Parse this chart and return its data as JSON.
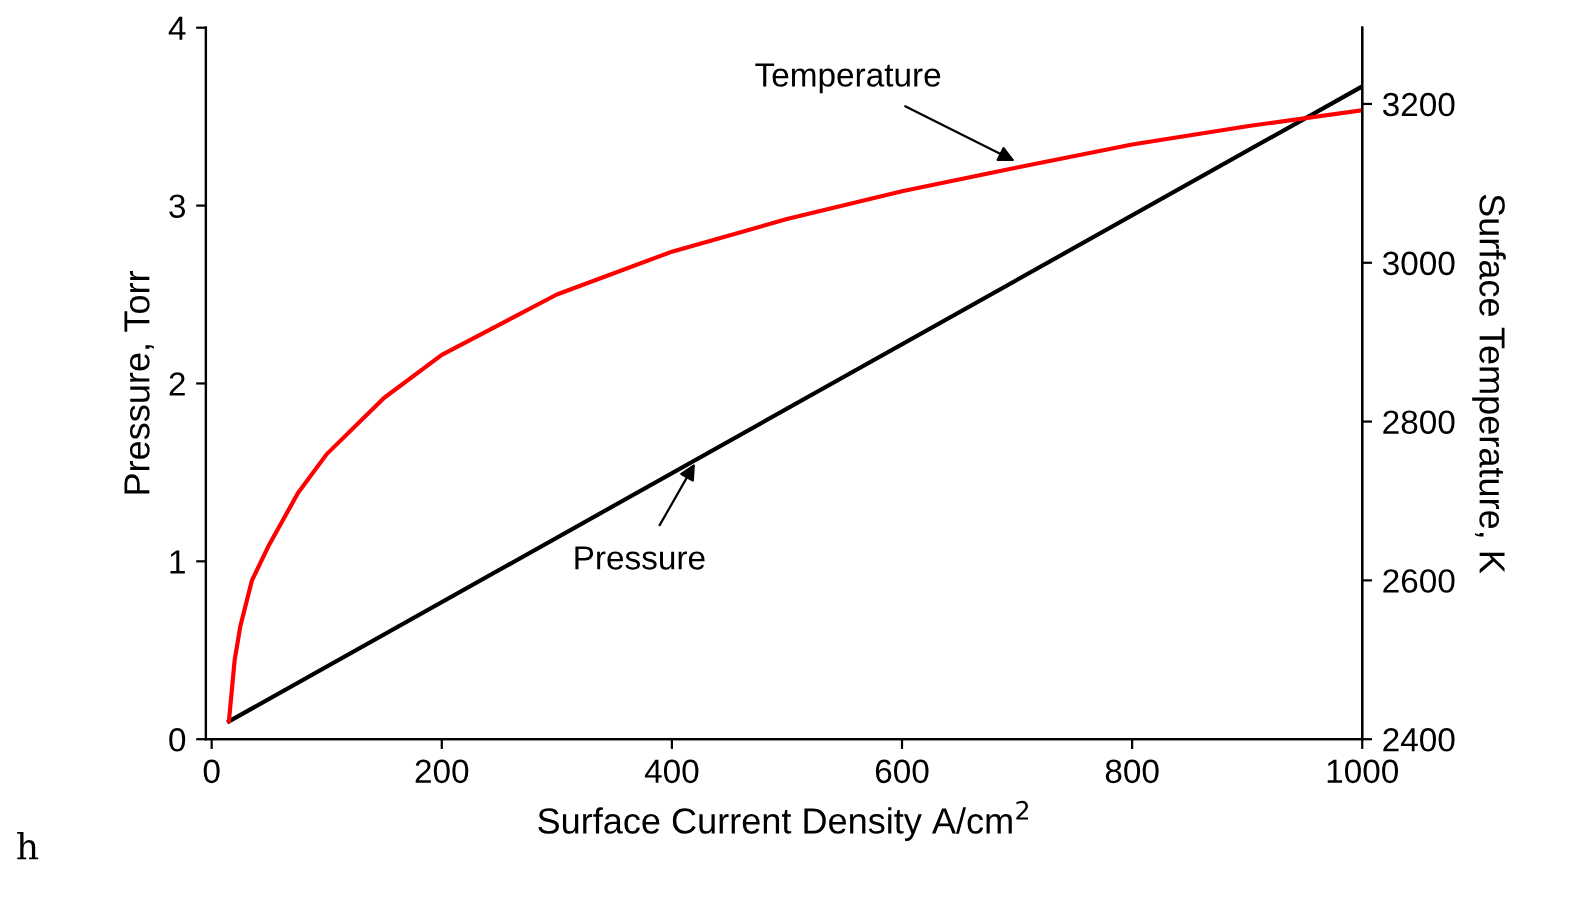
{
  "chart_data": {
    "type": "line",
    "xlabel": "Surface Current Density A/cm$^{2}$",
    "ylabel": "Pressure, Torr",
    "y2label": "Surface Temperature, K",
    "xlim": [
      -5,
      1000
    ],
    "xticks": [
      0,
      200,
      400,
      600,
      800,
      1000
    ],
    "ylim": [
      0,
      4
    ],
    "yticks": [
      0,
      1,
      2,
      3,
      4
    ],
    "y2lim": [
      2400,
      3296
    ],
    "y2ticks": [
      2400,
      2600,
      2800,
      3000,
      3200
    ],
    "grid": false,
    "legend": false,
    "marker": "none",
    "line_style": "solid",
    "series": [
      {
        "color": "#000000",
        "x": [
          15,
          1000
        ],
        "values": [
          0.1,
          3.67
        ]
      },
      {
        "color": "#ff0000",
        "axis": "y2",
        "x": [
          15,
          20,
          25,
          35,
          50,
          75,
          100,
          150,
          200,
          300,
          400,
          500,
          600,
          700,
          800,
          900,
          1000
        ],
        "values": [
          2423,
          2500,
          2543,
          2600,
          2645,
          2710,
          2759,
          2830,
          2884,
          2960,
          3014,
          3055,
          3090,
          3120,
          3149,
          3172,
          3192
        ]
      }
    ],
    "annotations": [
      {
        "text": "Temperature",
        "x": 698,
        "y": 3.25
      },
      {
        "text": "Pressure",
        "x": 420,
        "y": 1.55
      },
      "h"
    ]
  }
}
